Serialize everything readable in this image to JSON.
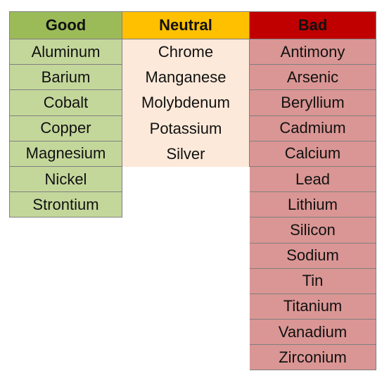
{
  "columns": {
    "good": {
      "header": "Good",
      "header_bg": "#9BBB59",
      "cell_bg": "#C4D79B",
      "items": [
        "Aluminum",
        "Barium",
        "Cobalt",
        "Copper",
        "Magnesium",
        "Nickel",
        "Strontium"
      ]
    },
    "neutral": {
      "header": "Neutral",
      "header_bg": "#FFC000",
      "cell_bg": "#FDE9D9",
      "items": [
        "Chrome",
        "Manganese",
        "Molybdenum",
        "Potassium",
        "Silver"
      ]
    },
    "bad": {
      "header": "Bad",
      "header_bg": "#C00000",
      "cell_bg": "#DA9694",
      "items": [
        "Antimony",
        "Arsenic",
        "Beryllium",
        "Cadmium",
        "Calcium",
        "Lead",
        "Lithium",
        "Silicon",
        "Sodium",
        "Tin",
        "Titanium",
        "Vanadium",
        "Zirconium"
      ]
    }
  }
}
